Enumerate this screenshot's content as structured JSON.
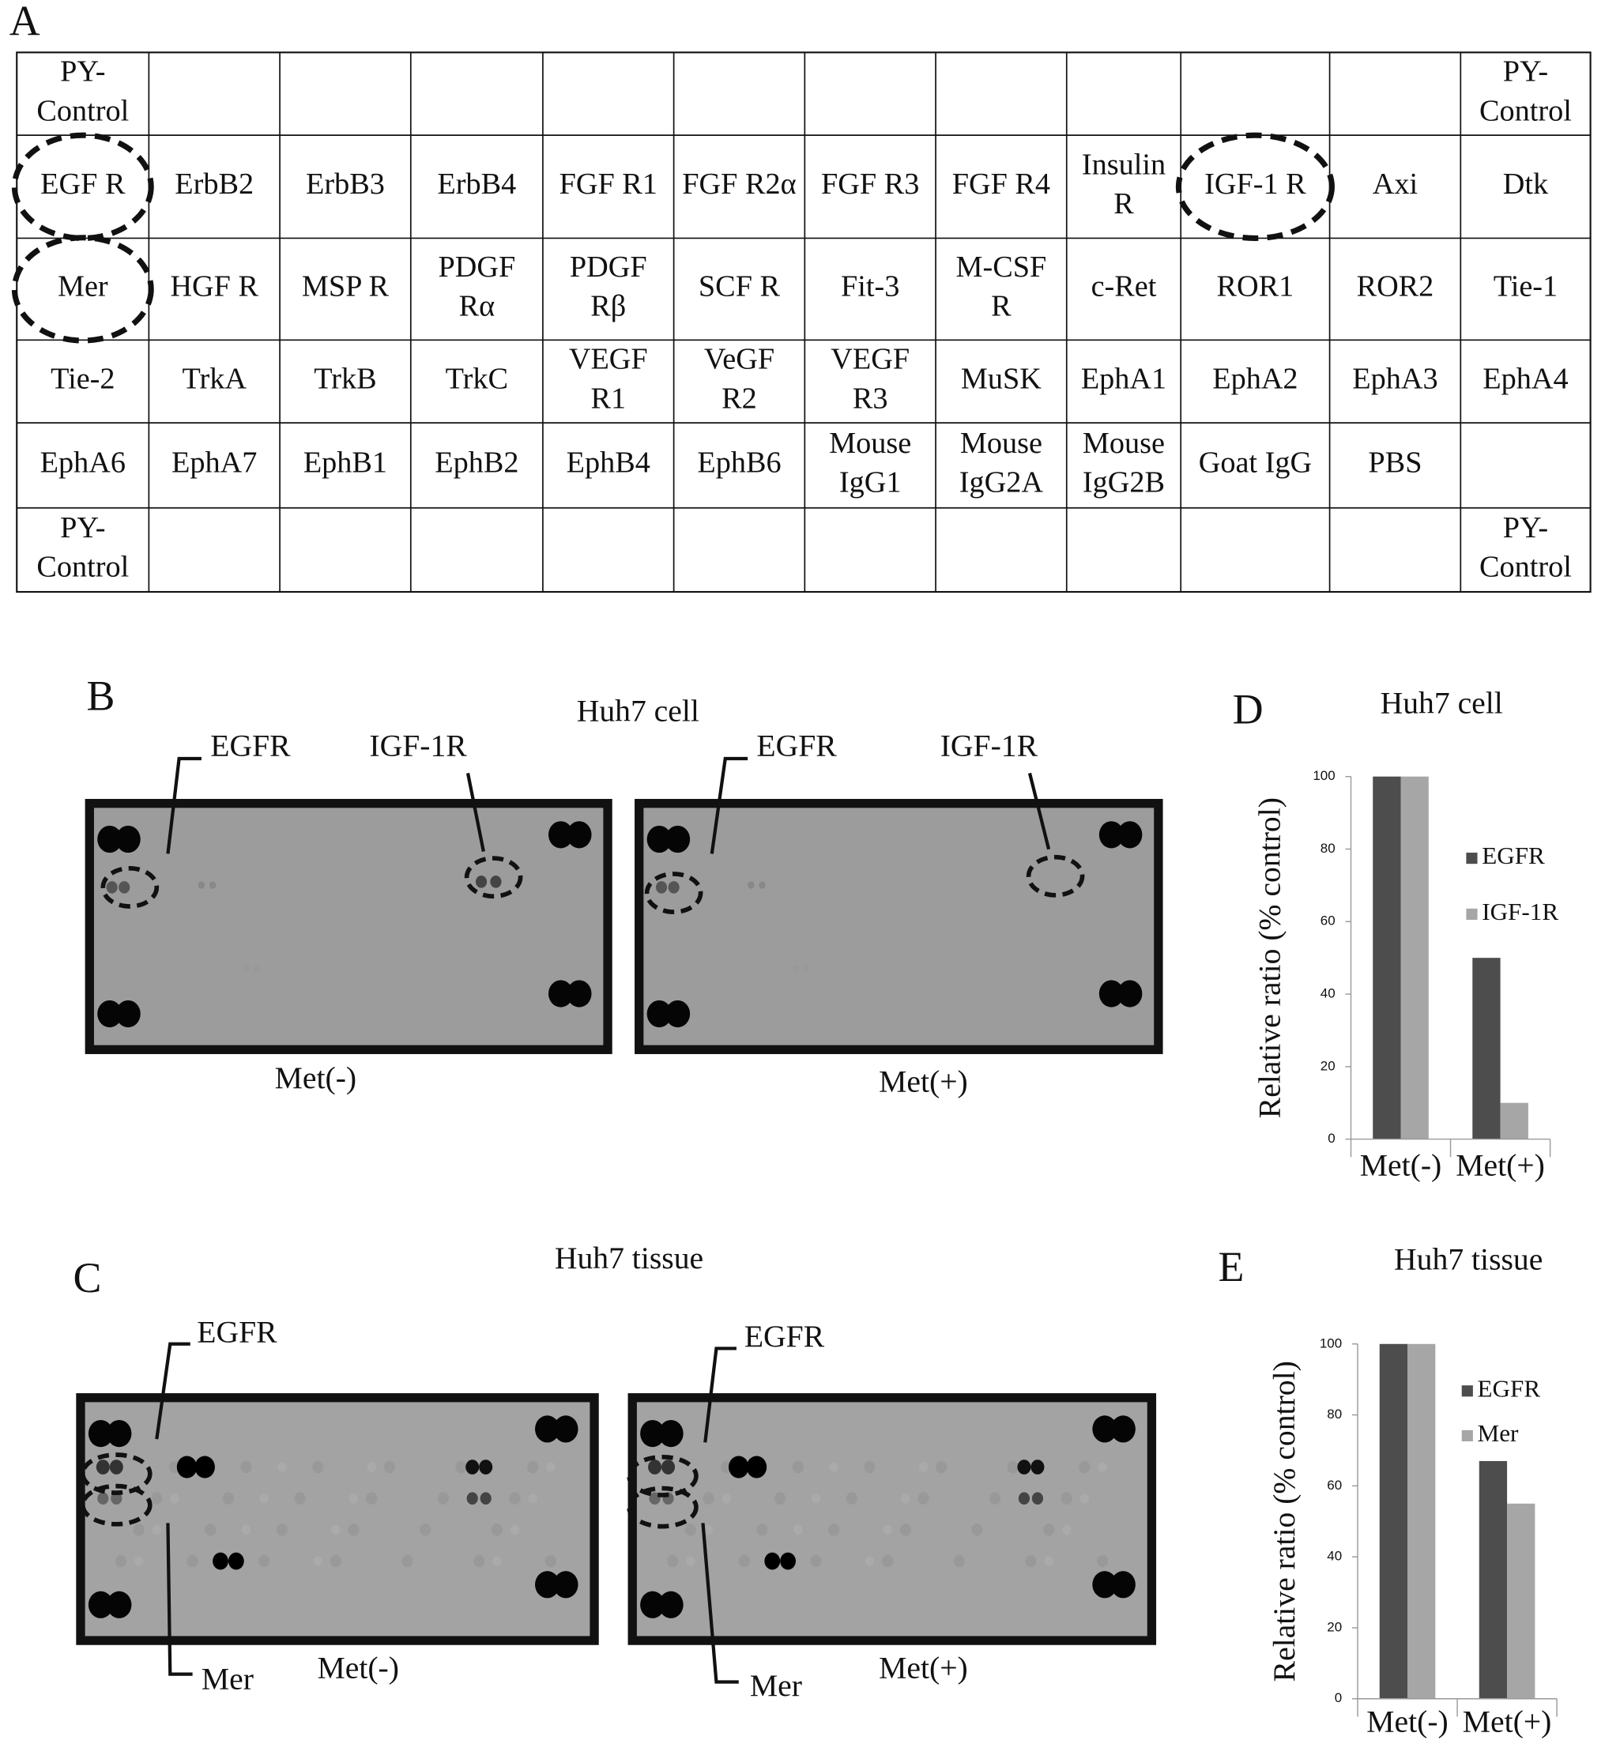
{
  "panel_labels": [
    "A",
    "B",
    "C",
    "D",
    "E"
  ],
  "table": {
    "rows": [
      [
        [
          "PY-",
          "Control"
        ],
        null,
        null,
        null,
        null,
        null,
        null,
        null,
        null,
        null,
        null,
        [
          "PY-",
          "Control"
        ]
      ],
      [
        [
          "EGF R"
        ],
        [
          "ErbB2"
        ],
        [
          "ErbB3"
        ],
        [
          "ErbB4"
        ],
        [
          "FGF R1"
        ],
        [
          "FGF R2α"
        ],
        [
          "FGF R3"
        ],
        [
          "FGF R4"
        ],
        [
          "Insulin",
          "R"
        ],
        [
          "IGF-1 R"
        ],
        [
          "Axi"
        ],
        [
          "Dtk"
        ]
      ],
      [
        [
          "Mer"
        ],
        [
          "HGF R"
        ],
        [
          "MSP R"
        ],
        [
          "PDGF",
          "Rα"
        ],
        [
          "PDGF",
          "Rβ"
        ],
        [
          "SCF R"
        ],
        [
          "Fit-3"
        ],
        [
          "M-CSF",
          "R"
        ],
        [
          "c-Ret"
        ],
        [
          "ROR1"
        ],
        [
          "ROR2"
        ],
        [
          "Tie-1"
        ]
      ],
      [
        [
          "Tie-2"
        ],
        [
          "TrkA"
        ],
        [
          "TrkB"
        ],
        [
          "TrkC"
        ],
        [
          "VEGF",
          "R1"
        ],
        [
          "VeGF",
          "R2"
        ],
        [
          "VEGF",
          "R3"
        ],
        [
          "MuSK"
        ],
        [
          "EphA1"
        ],
        [
          "EphA2"
        ],
        [
          "EphA3"
        ],
        [
          "EphA4"
        ]
      ],
      [
        [
          "EphA6"
        ],
        [
          "EphA7"
        ],
        [
          "EphB1"
        ],
        [
          "EphB2"
        ],
        [
          "EphB4"
        ],
        [
          "EphB6"
        ],
        [
          "Mouse",
          "IgG1"
        ],
        [
          "Mouse",
          "IgG2A"
        ],
        [
          "Mouse",
          "IgG2B"
        ],
        [
          "Goat IgG"
        ],
        [
          "PBS"
        ],
        null
      ],
      [
        [
          "PY-",
          "Control"
        ],
        null,
        null,
        null,
        null,
        null,
        null,
        null,
        null,
        null,
        null,
        [
          "PY-",
          "Control"
        ]
      ]
    ]
  },
  "blots": [
    {
      "title": "Huh7 cell",
      "labels": [
        "EGFR",
        "IGF-1R"
      ],
      "conditions": [
        "Met(-)",
        "Met(+)"
      ]
    },
    {
      "title": "Huh7 tissue",
      "labels": [
        "EGFR",
        "Mer"
      ],
      "conditions": [
        "Met(-)",
        "Met(+)"
      ]
    }
  ],
  "chart_data": [
    {
      "type": "bar",
      "title": "Huh7 cell",
      "y_label": "Relative ratio (% control)",
      "categories": [
        "Met(-)",
        "Met(+)"
      ],
      "series": [
        {
          "name": "EGFR",
          "color": "#4d4d4d",
          "values": [
            100,
            50
          ]
        },
        {
          "name": "IGF-1R",
          "color": "#a6a6a6",
          "values": [
            100,
            10
          ]
        }
      ],
      "ylim": [
        0,
        100
      ],
      "yticks": [
        0,
        20,
        40,
        60,
        80,
        100
      ],
      "legend": "right"
    },
    {
      "type": "bar",
      "title": "Huh7 tissue",
      "y_label": "Relative ratio (% control)",
      "categories": [
        "Met(-)",
        "Met(+)"
      ],
      "series": [
        {
          "name": "EGFR",
          "color": "#4d4d4d",
          "values": [
            100,
            67
          ]
        },
        {
          "name": "Mer",
          "color": "#a6a6a6",
          "values": [
            100,
            55
          ]
        }
      ],
      "ylim": [
        0,
        100
      ],
      "yticks": [
        0,
        20,
        40,
        60,
        80,
        100
      ],
      "legend": "right"
    }
  ]
}
